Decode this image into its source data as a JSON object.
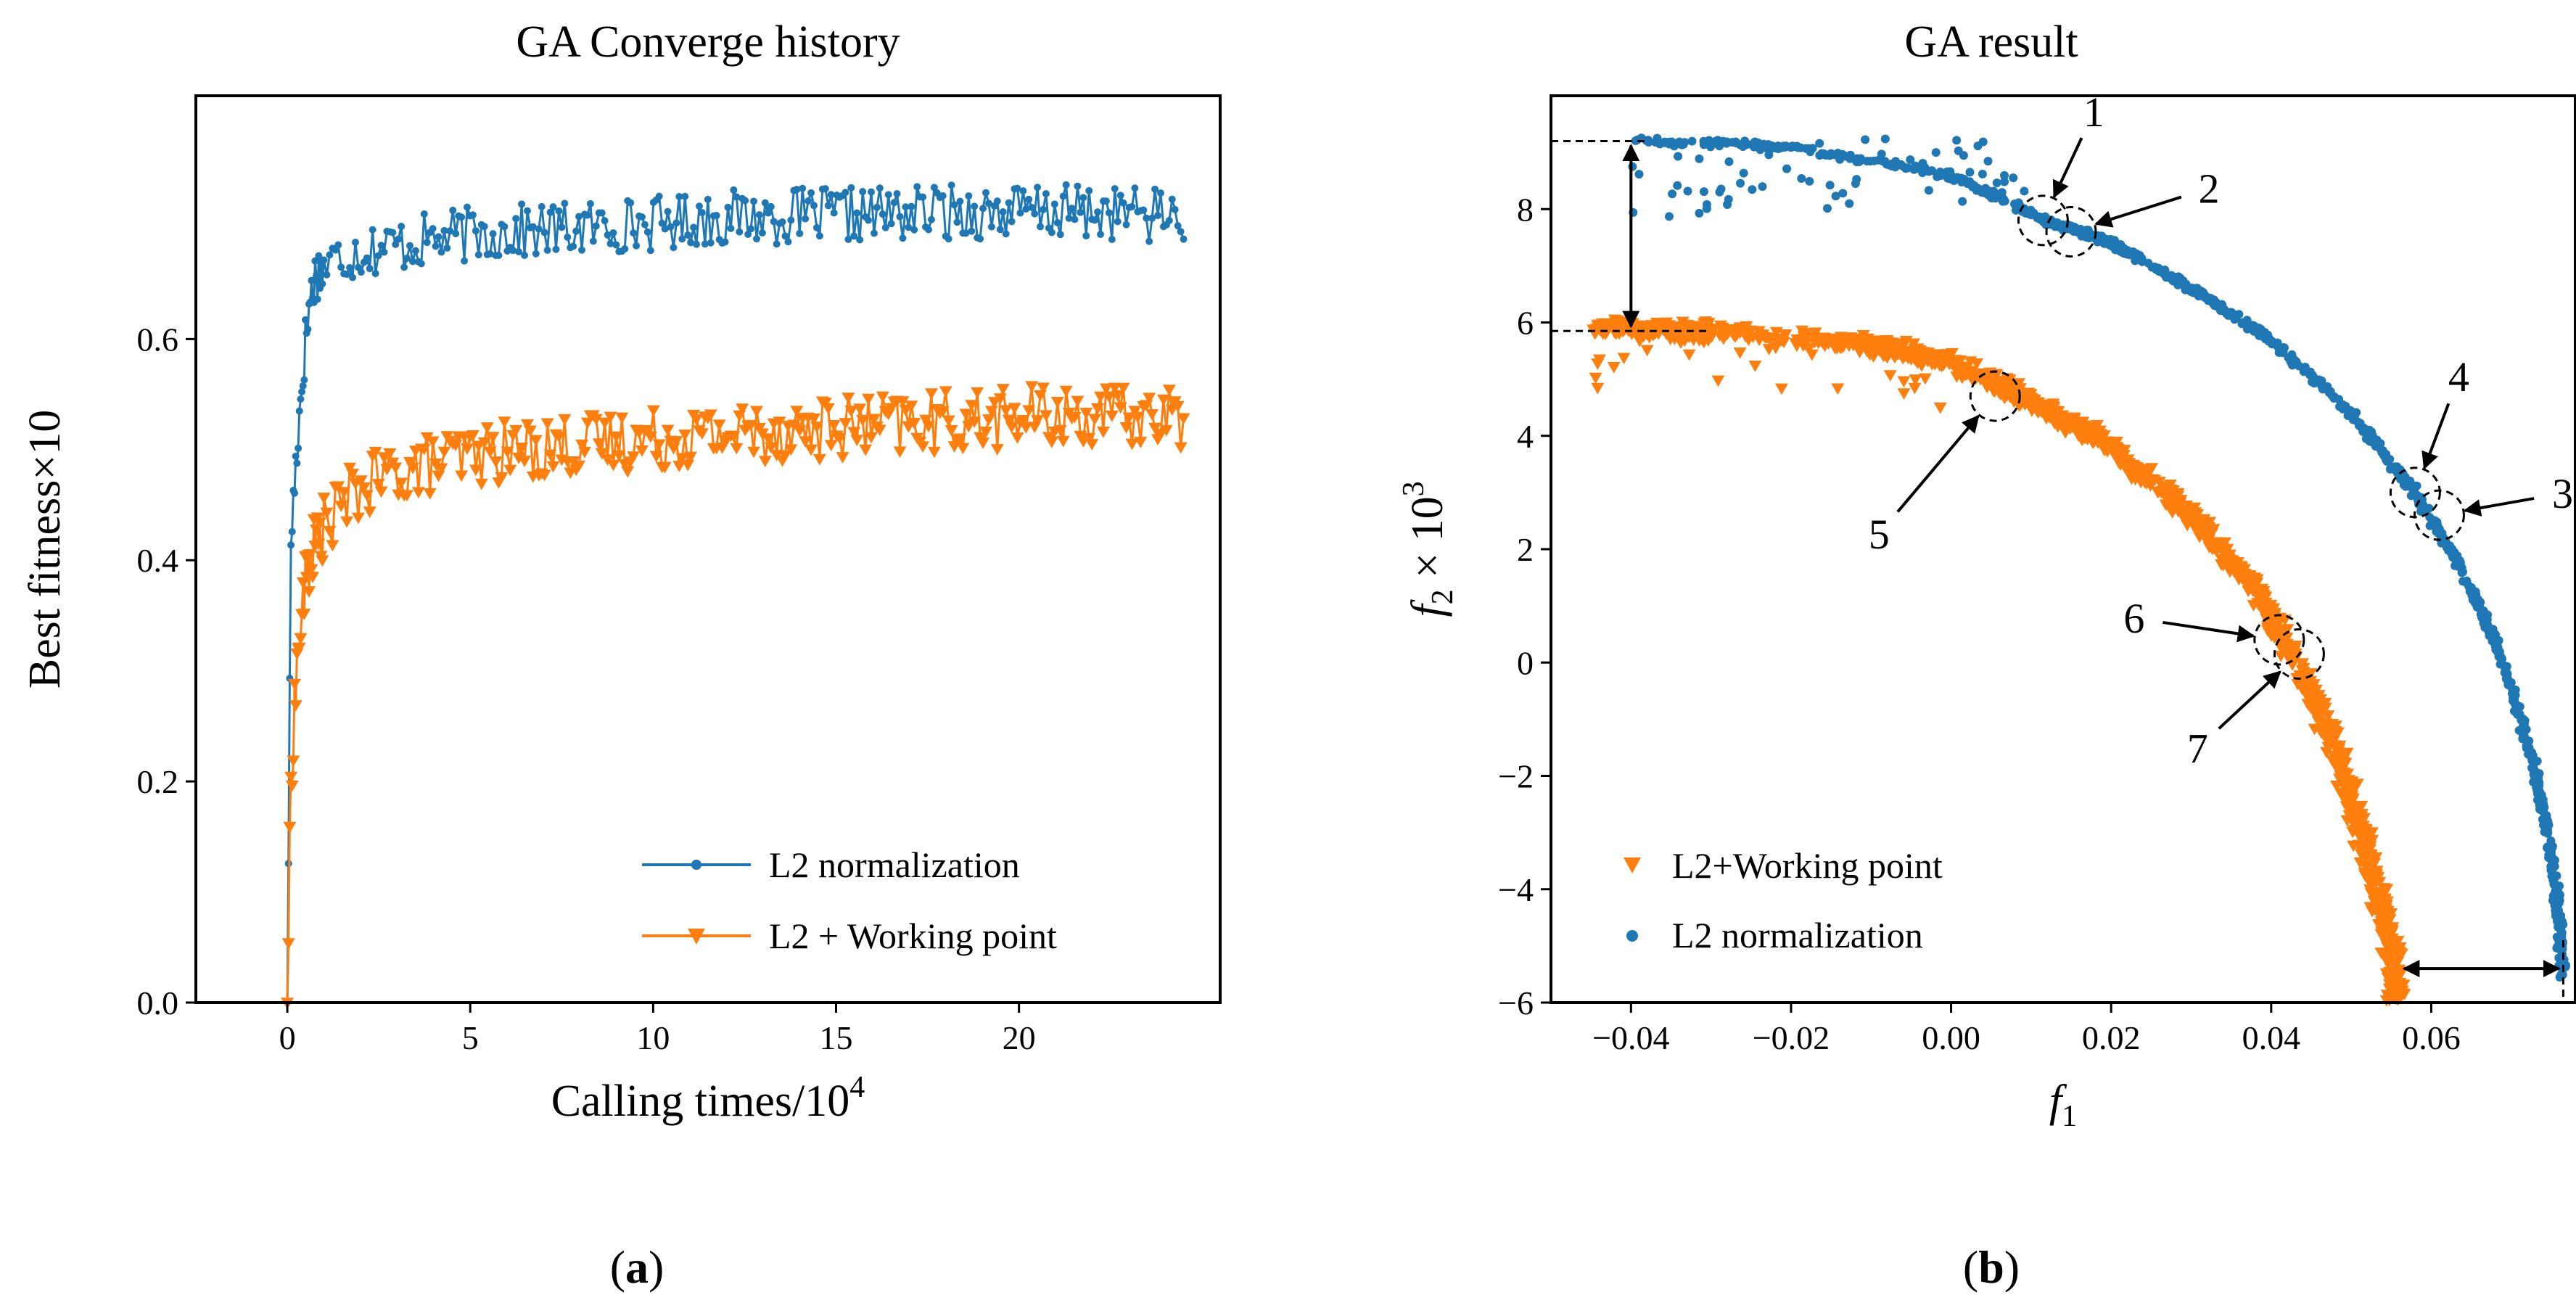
{
  "colors": {
    "blue": "#1f77b4",
    "orange": "#ff7f0e"
  },
  "chart_data": [
    {
      "id": "a",
      "type": "line",
      "title": "GA Converge history",
      "xlabel": "Calling times/10",
      "xlabel_exp": "4",
      "ylabel": "Best fitness×10",
      "xlim": [
        -2.5,
        25.5
      ],
      "ylim": [
        0.0,
        0.82
      ],
      "xticks": [
        0,
        5,
        10,
        15,
        20
      ],
      "yticks": [
        0.0,
        0.2,
        0.4,
        0.6
      ],
      "ytick_labels": [
        "0.0",
        "0.2",
        "0.4",
        "0.6"
      ],
      "caption": "a",
      "legend_position": "lower-right",
      "series": [
        {
          "name": "L2 normalization",
          "marker": "circle",
          "color": "#1f77b4",
          "x": [
            0,
            0.1,
            0.2,
            0.3,
            0.4,
            0.5,
            0.6,
            0.7,
            0.8,
            1.0,
            1.5,
            2.0,
            3.0,
            5.0,
            8.0,
            10.0,
            12.0,
            15.0,
            18.0,
            20.0,
            22.0,
            24.5
          ],
          "y": [
            0.0,
            0.42,
            0.47,
            0.52,
            0.56,
            0.6,
            0.63,
            0.65,
            0.66,
            0.665,
            0.675,
            0.68,
            0.685,
            0.695,
            0.7,
            0.705,
            0.71,
            0.712,
            0.715,
            0.715,
            0.715,
            0.712
          ],
          "noise": 0.025
        },
        {
          "name": "L2 + Working point",
          "marker": "triangle-down",
          "color": "#ff7f0e",
          "x": [
            0,
            0.1,
            0.2,
            0.3,
            0.4,
            0.5,
            0.7,
            1.0,
            1.5,
            2.0,
            3.0,
            5.0,
            8.0,
            10.0,
            12.0,
            15.0,
            18.0,
            20.0,
            22.0,
            24.5
          ],
          "y": [
            0.0,
            0.2,
            0.27,
            0.32,
            0.35,
            0.38,
            0.41,
            0.43,
            0.45,
            0.465,
            0.48,
            0.495,
            0.505,
            0.51,
            0.515,
            0.52,
            0.525,
            0.53,
            0.53,
            0.53
          ],
          "noise": 0.028
        }
      ]
    },
    {
      "id": "b",
      "type": "scatter",
      "title": "GA result",
      "xlabel": "f",
      "xlabel_sub": "1",
      "ylabel": "f",
      "ylabel_sub": "2",
      "ylabel_times": " × 10",
      "ylabel_exp": "3",
      "xlim": [
        -0.05,
        0.078
      ],
      "ylim": [
        -6.0,
        10.0
      ],
      "xticks": [
        -0.04,
        -0.02,
        0.0,
        0.02,
        0.04,
        0.06
      ],
      "xtick_labels": [
        "−0.04",
        "−0.02",
        "0.00",
        "0.02",
        "0.04",
        "0.06"
      ],
      "yticks": [
        -6,
        -4,
        -2,
        0,
        2,
        4,
        6,
        8
      ],
      "ytick_labels": [
        "−6",
        "−4",
        "−2",
        "0",
        "2",
        "4",
        "6",
        "8"
      ],
      "caption": "b",
      "legend_position": "lower-left",
      "series": [
        {
          "name": "L2+Working point",
          "marker": "triangle-down",
          "color": "#ff7f0e",
          "front": [
            [
              -0.045,
              5.9
            ],
            [
              -0.03,
              5.85
            ],
            [
              -0.01,
              5.6
            ],
            [
              0.0,
              5.3
            ],
            [
              0.01,
              4.6
            ],
            [
              0.02,
              3.8
            ],
            [
              0.03,
              2.6
            ],
            [
              0.038,
              1.3
            ],
            [
              0.044,
              -0.2
            ],
            [
              0.049,
              -1.9
            ],
            [
              0.052,
              -3.4
            ],
            [
              0.055,
              -5.0
            ],
            [
              0.0555,
              -5.95
            ]
          ],
          "spread": 0.45
        },
        {
          "name": "L2 normalization",
          "marker": "circle",
          "color": "#1f77b4",
          "front": [
            [
              -0.04,
              9.2
            ],
            [
              -0.02,
              9.1
            ],
            [
              0.0,
              8.6
            ],
            [
              0.012,
              7.8
            ],
            [
              0.02,
              7.4
            ],
            [
              0.03,
              6.6
            ],
            [
              0.04,
              5.7
            ],
            [
              0.05,
              4.4
            ],
            [
              0.058,
              3.0
            ],
            [
              0.064,
              1.6
            ],
            [
              0.069,
              0.0
            ],
            [
              0.073,
              -1.9
            ],
            [
              0.0755,
              -3.8
            ],
            [
              0.0765,
              -5.6
            ]
          ],
          "spread": 0.2
        }
      ],
      "annotations": [
        {
          "label": "1",
          "x": 0.0115,
          "y": 7.8
        },
        {
          "label": "2",
          "x": 0.015,
          "y": 7.6
        },
        {
          "label": "3",
          "x": 0.061,
          "y": 2.6
        },
        {
          "label": "4",
          "x": 0.058,
          "y": 3.0
        },
        {
          "label": "5",
          "x": 0.0055,
          "y": 4.7
        },
        {
          "label": "6",
          "x": 0.041,
          "y": 0.4
        },
        {
          "label": "7",
          "x": 0.0435,
          "y": 0.15
        }
      ],
      "bracket_vertical": {
        "x": -0.045,
        "y_top": 9.2,
        "y_bottom": 5.85
      },
      "bracket_horizontal": {
        "y": -5.4,
        "x_left": 0.0555,
        "x_right": 0.0765
      }
    }
  ]
}
